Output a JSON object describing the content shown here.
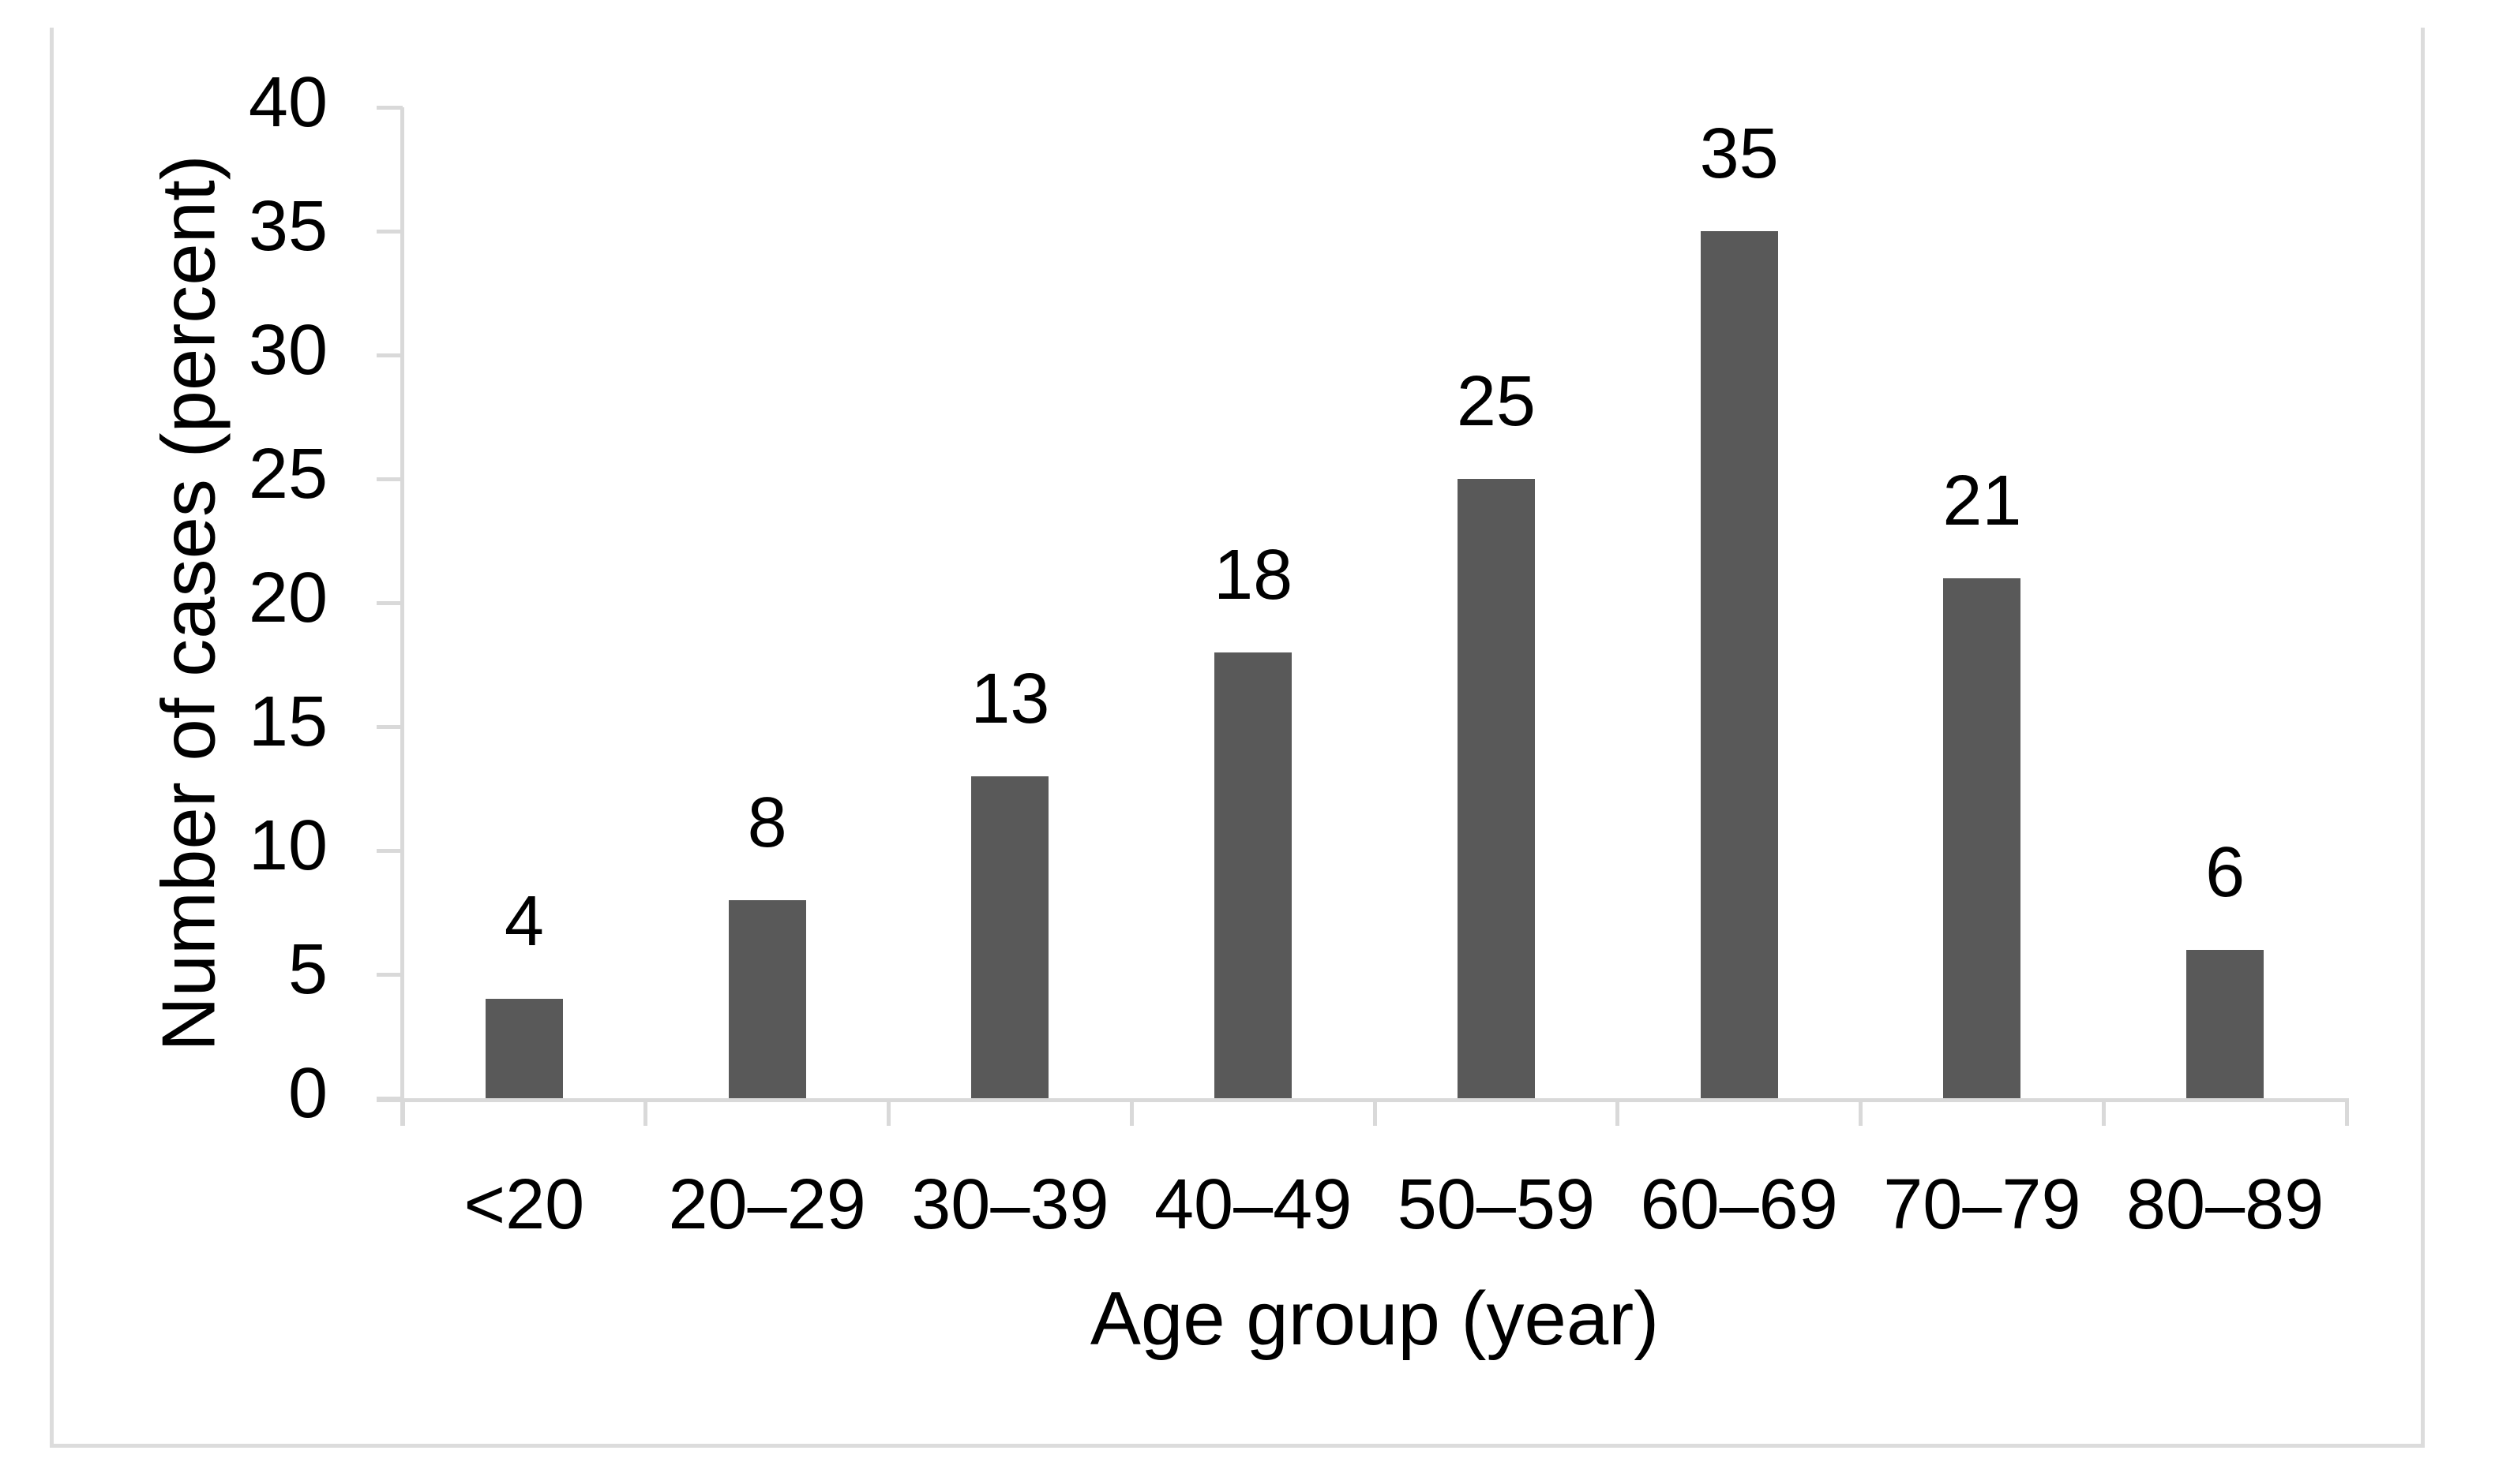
{
  "chart_data": {
    "type": "bar",
    "title": "",
    "categories": [
      "<20",
      "20–29",
      "30–39",
      "40–49",
      "50–59",
      "60–69",
      "70–79",
      "80–89"
    ],
    "values": [
      4,
      8,
      13,
      18,
      25,
      35,
      21,
      6
    ],
    "series_name": "Number of cases",
    "xlabel": "Age group (year)",
    "ylabel": "Number of cases (percent)",
    "ylim": [
      0,
      40
    ],
    "ytick_step": 5,
    "yticks": [
      0,
      5,
      10,
      15,
      20,
      25,
      30,
      35,
      40
    ],
    "data_labels_shown": true,
    "legend": "none",
    "grid": false,
    "colors": {
      "bar_fill": "#595959",
      "axis_line": "#D9D9D9",
      "frame_border": "#DCDCDC",
      "text": "#000000",
      "background": "#FFFFFF"
    }
  }
}
